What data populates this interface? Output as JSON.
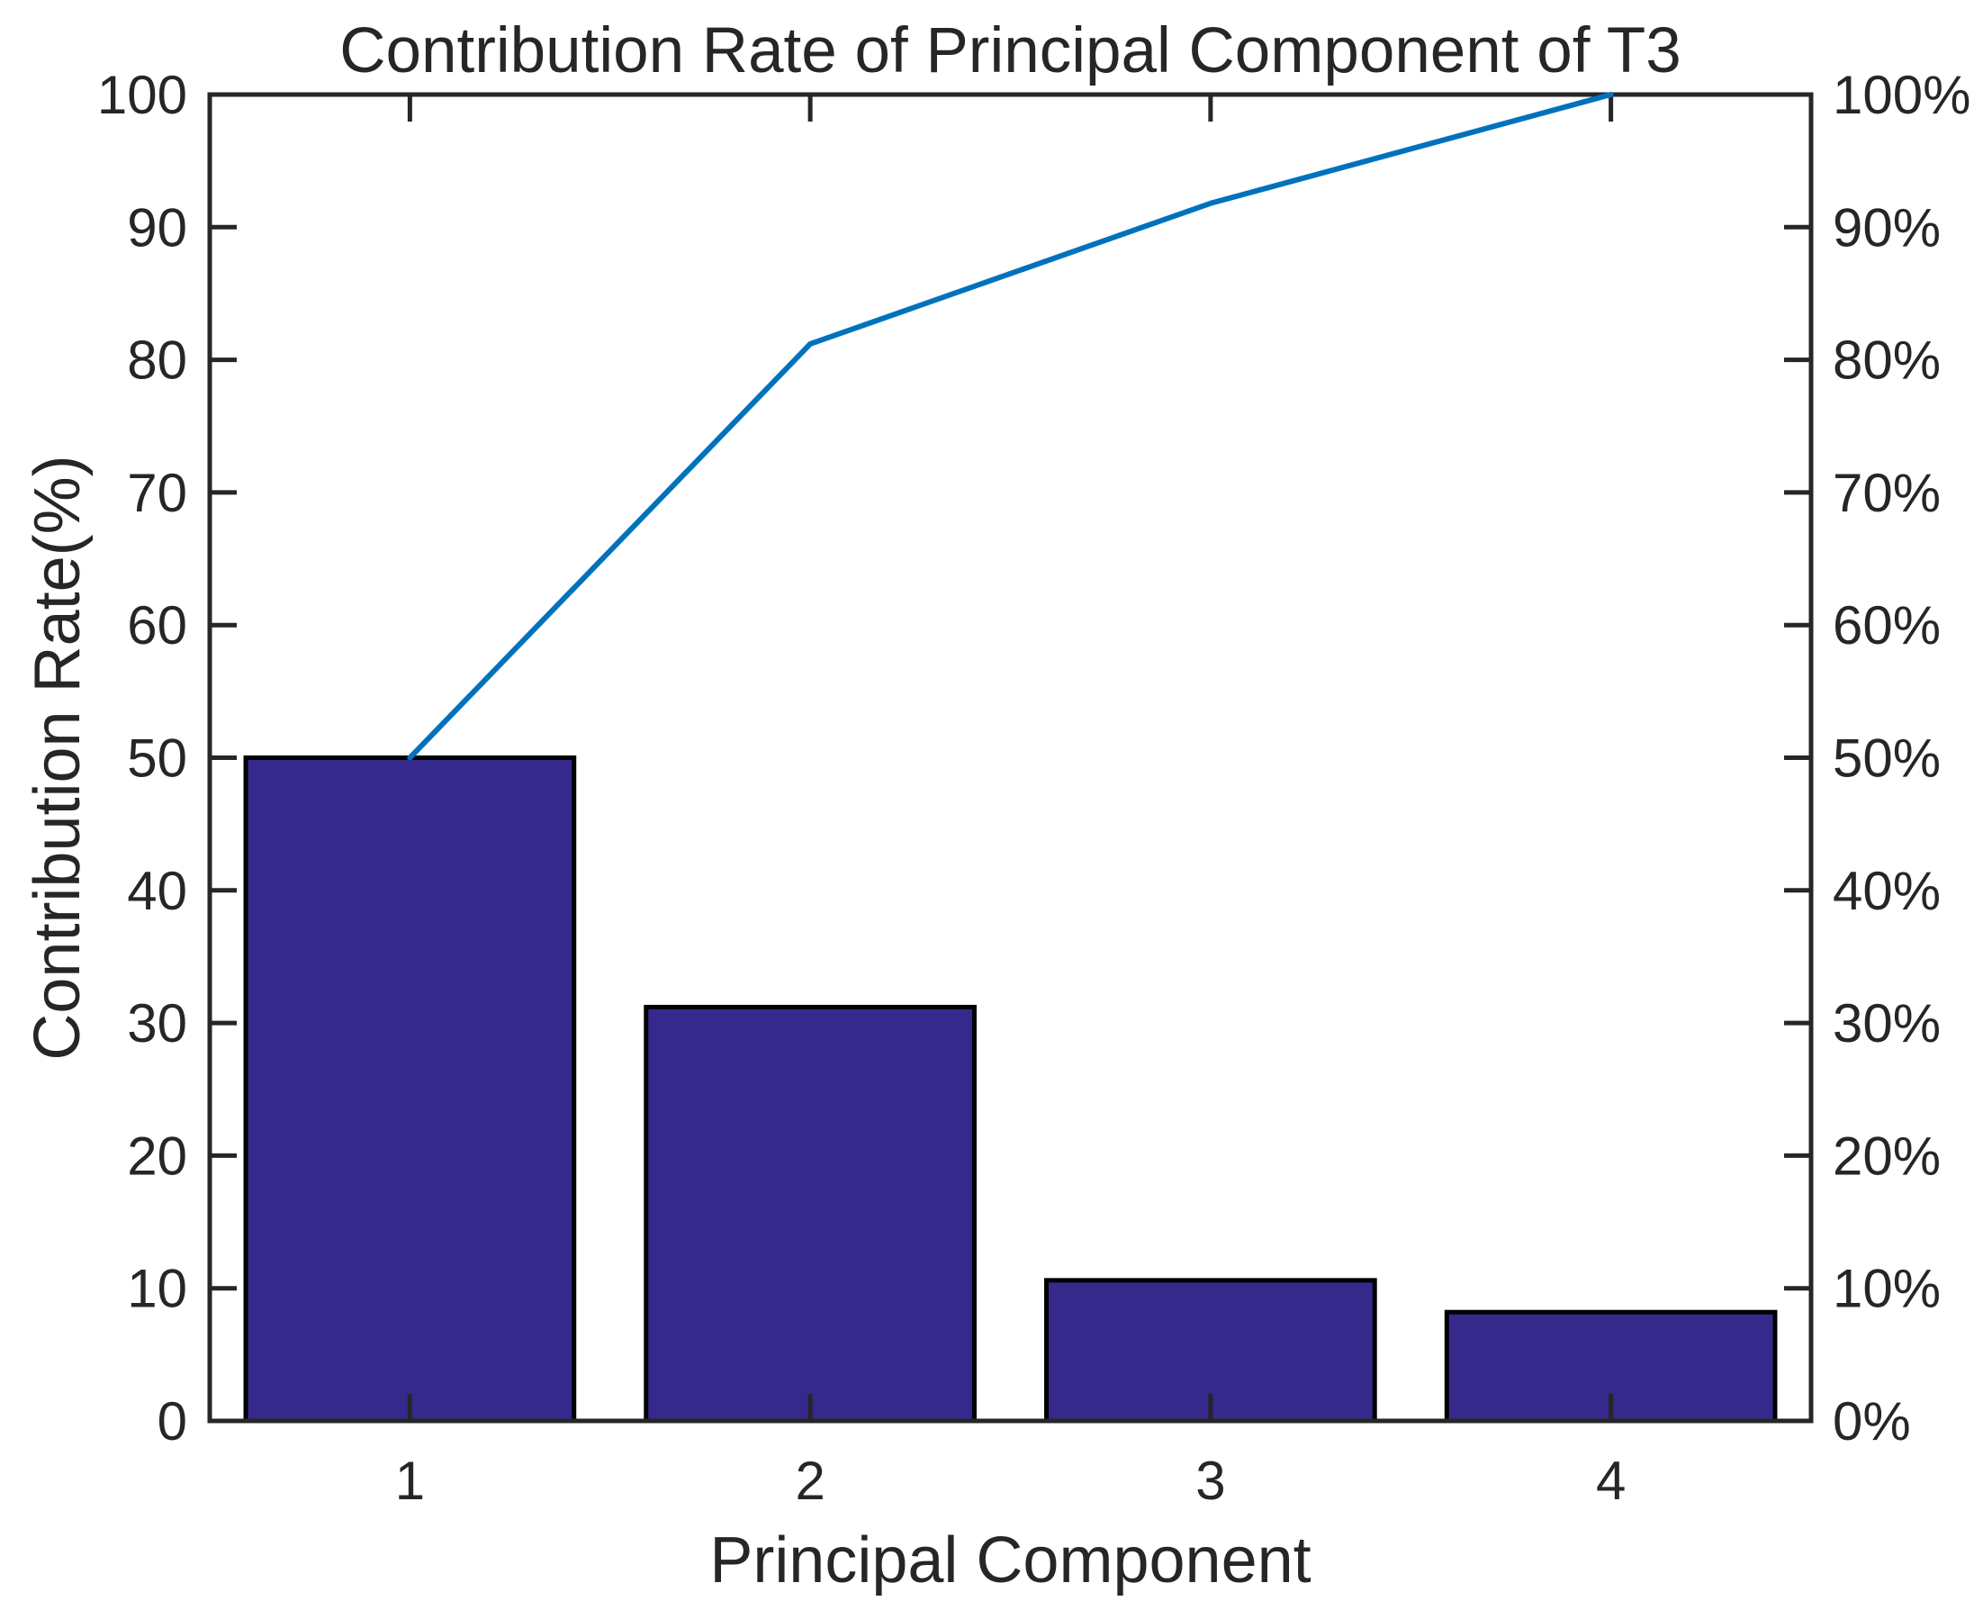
{
  "chart_data": {
    "type": "pareto",
    "title": "Contribution Rate of Principal Component of T3",
    "xlabel": "Principal Component",
    "ylabel": "Contribution Rate(%)",
    "categories": [
      "1",
      "2",
      "3",
      "4"
    ],
    "series": [
      {
        "name": "bars",
        "type": "bar",
        "values": [
          50.0,
          31.2,
          10.6,
          8.2
        ]
      },
      {
        "name": "cumulative_line",
        "type": "line",
        "values": [
          50.0,
          81.2,
          91.8,
          100.0
        ]
      }
    ],
    "left_axis": {
      "ticks": [
        0,
        10,
        20,
        30,
        40,
        50,
        60,
        70,
        80,
        90,
        100
      ],
      "range": [
        0,
        100
      ]
    },
    "right_axis": {
      "tick_labels": [
        "0%",
        "10%",
        "20%",
        "30%",
        "40%",
        "50%",
        "60%",
        "70%",
        "80%",
        "90%",
        "100%"
      ],
      "range": [
        0,
        100
      ]
    },
    "x_range": [
      0.5,
      4.5
    ],
    "grid": false,
    "bar_width_fraction": 0.82,
    "colors": {
      "bar_fill": "#35298C",
      "bar_edge": "#000000",
      "line": "#0072BD",
      "axis": "#262626",
      "text": "#262626"
    }
  }
}
